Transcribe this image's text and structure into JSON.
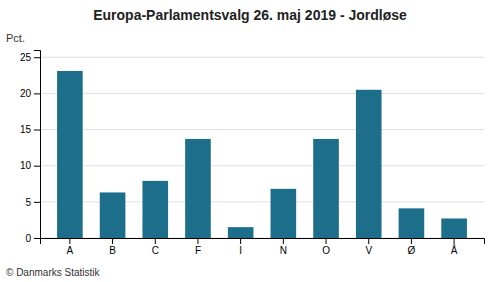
{
  "chart_data": {
    "type": "bar",
    "title": "Europa-Parlamentsvalg 26. maj 2019 - Jordløse",
    "ylabel": "Pct.",
    "annotations": [
      "© Danmarks Statistik"
    ],
    "categories": [
      "A",
      "B",
      "C",
      "F",
      "I",
      "N",
      "O",
      "V",
      "Ø",
      "Å"
    ],
    "values": [
      23.1,
      6.3,
      7.9,
      13.7,
      1.5,
      6.8,
      13.7,
      20.5,
      4.1,
      2.7
    ],
    "color": "#1c6e8a",
    "ylim": [
      0,
      26
    ],
    "yticks": [
      0,
      5,
      10,
      15,
      20,
      25
    ],
    "grid": true
  }
}
